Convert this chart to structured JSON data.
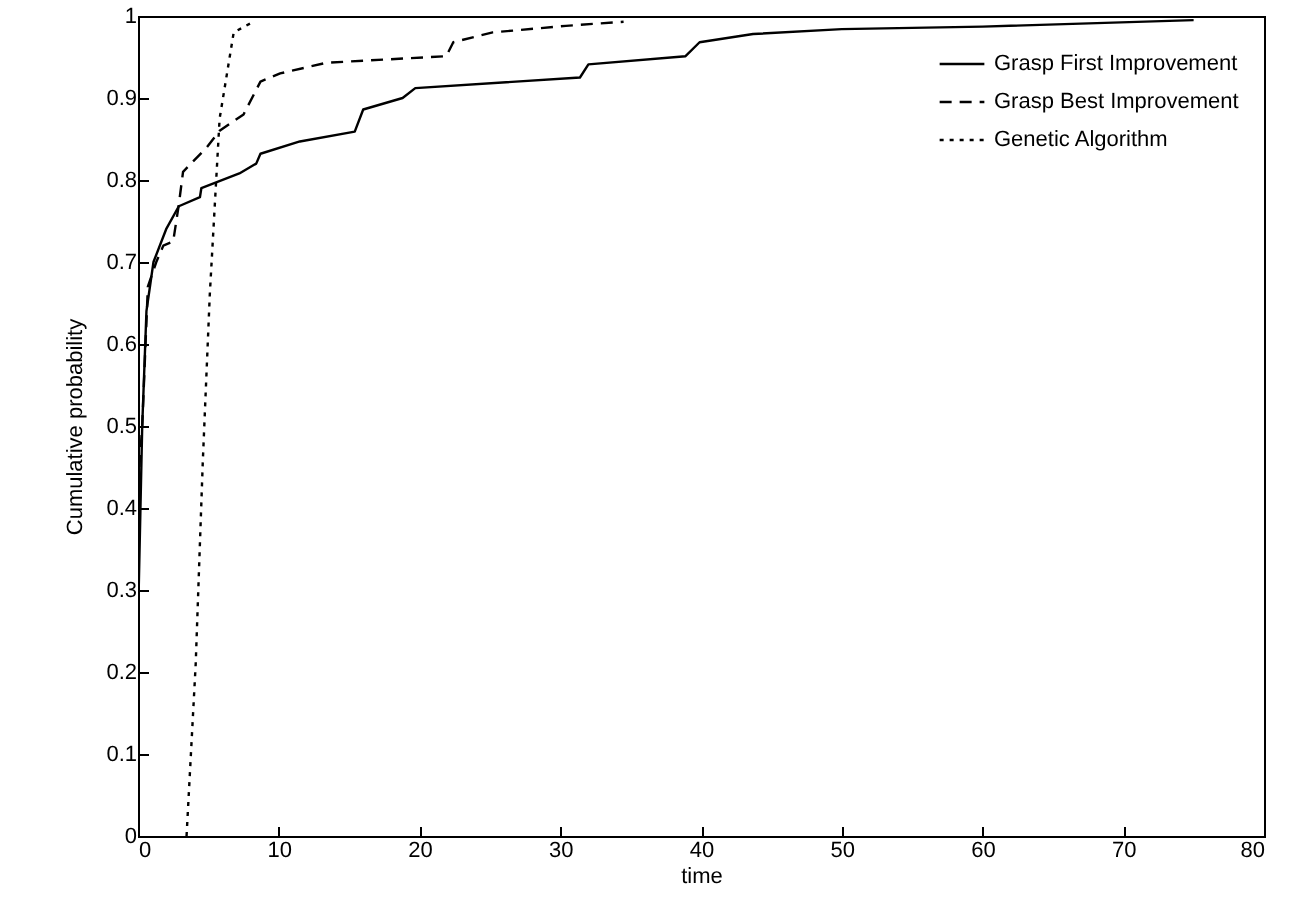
{
  "chart_data": {
    "type": "line",
    "xlabel": "time",
    "ylabel": "Cumulative probability",
    "xlim": [
      0,
      80
    ],
    "ylim": [
      0,
      1
    ],
    "xticks": [
      0,
      10,
      20,
      30,
      40,
      50,
      60,
      70,
      80
    ],
    "yticks": [
      0,
      0.1,
      0.2,
      0.3,
      0.4,
      0.5,
      0.6,
      0.7,
      0.8,
      0.9,
      1
    ],
    "grid": false,
    "legend": "top right",
    "marker": "none",
    "series": [
      {
        "name": "Grasp First Improvement",
        "color": "#000000",
        "line_style": "solid",
        "x": [
          0.05,
          0.3,
          0.6,
          1.1,
          2.0,
          2.9,
          4.4,
          4.5,
          7.2,
          8.4,
          8.7,
          11.5,
          15.4,
          16.0,
          18.8,
          19.7,
          31.4,
          32.0,
          38.9,
          39.9,
          43.7,
          50,
          60,
          75
        ],
        "values": [
          0.3,
          0.5,
          0.64,
          0.7,
          0.74,
          0.768,
          0.779,
          0.79,
          0.808,
          0.82,
          0.832,
          0.847,
          0.859,
          0.886,
          0.9,
          0.912,
          0.925,
          0.941,
          0.951,
          0.968,
          0.978,
          0.984,
          0.987,
          0.995
        ]
      },
      {
        "name": "Grasp Best Improvement",
        "color": "#000000",
        "line_style": "dashed",
        "x": [
          0.1,
          0.3,
          0.7,
          1.3,
          1.8,
          2.5,
          2.9,
          3.2,
          4.9,
          5.8,
          7.5,
          8.7,
          10.1,
          13.4,
          21.9,
          22.4,
          25.2,
          30.4,
          34.5
        ],
        "values": [
          0.45,
          0.5,
          0.67,
          0.7,
          0.72,
          0.725,
          0.77,
          0.81,
          0.84,
          0.86,
          0.88,
          0.92,
          0.93,
          0.943,
          0.951,
          0.968,
          0.98,
          0.988,
          0.993
        ]
      },
      {
        "name": "Genetic Algorithm",
        "color": "#000000",
        "line_style": "dotted",
        "x": [
          3.45,
          4.1,
          4.6,
          5.1,
          5.8,
          6.8,
          8.2
        ],
        "values": [
          0,
          0.21,
          0.455,
          0.66,
          0.875,
          0.98,
          0.993
        ]
      }
    ]
  }
}
